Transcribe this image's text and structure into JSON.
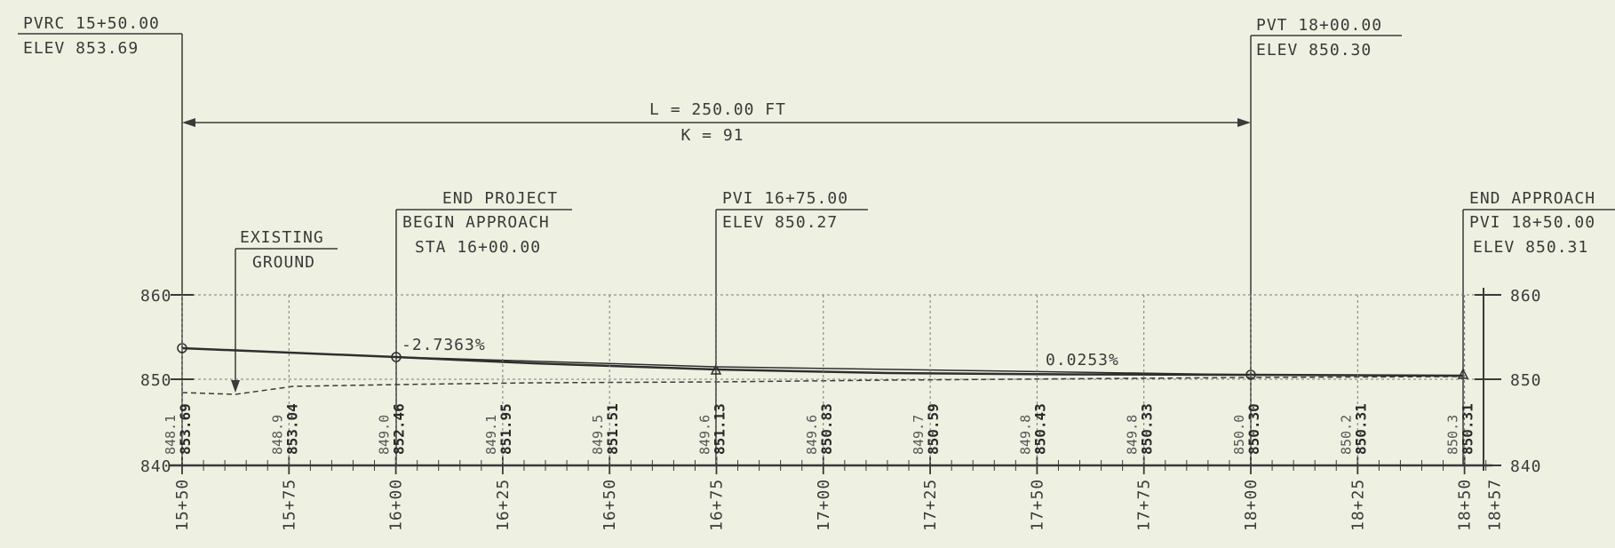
{
  "colors": {
    "background": "#eef1e1",
    "ink": "#3a3a3a",
    "grid": "#7a7a7a"
  },
  "callouts": {
    "pvrc": {
      "line1": "PVRC 15+50.00",
      "line2": "ELEV 853.69"
    },
    "pvt": {
      "line1": "PVT 18+00.00",
      "line2": "ELEV 850.30"
    },
    "curve": {
      "length": "L = 250.00 FT",
      "k": "K = 91"
    },
    "end_project": {
      "line1": "END PROJECT",
      "line2": "BEGIN APPROACH",
      "line3": "STA 16+00.00"
    },
    "pvi_mid": {
      "line1": "PVI 16+75.00",
      "line2": "ELEV 850.27"
    },
    "end_approach": {
      "line1": "END APPROACH",
      "line2": "PVI 18+50.00",
      "line3": "ELEV 850.31"
    },
    "existing": {
      "line1": "EXISTING",
      "line2": "GROUND"
    }
  },
  "grades": {
    "left": "-2.7363%",
    "right": "0.0253%"
  },
  "axis": {
    "y_labels": [
      "860",
      "850",
      "840"
    ]
  },
  "stations": [
    {
      "label": "15+50",
      "station": 1550,
      "existing": "848.1",
      "proposed": "853.69"
    },
    {
      "label": "15+75",
      "station": 1575,
      "existing": "848.9",
      "proposed": "853.04"
    },
    {
      "label": "16+00",
      "station": 1600,
      "existing": "849.0",
      "proposed": "852.46"
    },
    {
      "label": "16+25",
      "station": 1625,
      "existing": "849.1",
      "proposed": "851.95"
    },
    {
      "label": "16+50",
      "station": 1650,
      "existing": "849.5",
      "proposed": "851.51"
    },
    {
      "label": "16+75",
      "station": 1675,
      "existing": "849.6",
      "proposed": "851.13"
    },
    {
      "label": "17+00",
      "station": 1700,
      "existing": "849.6",
      "proposed": "850.83"
    },
    {
      "label": "17+25",
      "station": 1725,
      "existing": "849.7",
      "proposed": "850.59"
    },
    {
      "label": "17+50",
      "station": 1750,
      "existing": "849.8",
      "proposed": "850.43"
    },
    {
      "label": "17+75",
      "station": 1775,
      "existing": "849.8",
      "proposed": "850.33"
    },
    {
      "label": "18+00",
      "station": 1800,
      "existing": "850.0",
      "proposed": "850.30"
    },
    {
      "label": "18+25",
      "station": 1825,
      "existing": "850.2",
      "proposed": "850.31"
    },
    {
      "label": "18+50",
      "station": 1850,
      "existing": "850.3",
      "proposed": "850.31"
    },
    {
      "label": "18+57",
      "station": 1857,
      "existing": "",
      "proposed": ""
    }
  ]
}
